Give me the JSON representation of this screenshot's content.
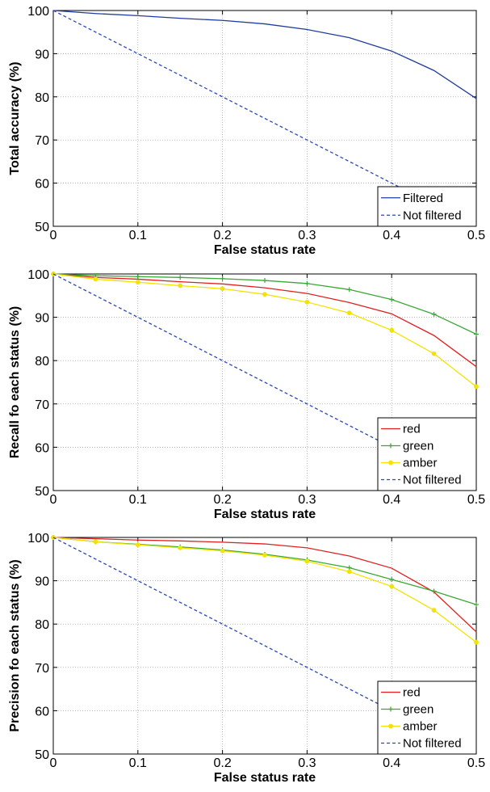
{
  "colors": {
    "Filtered": "#1f3d9c",
    "Not filtered": "#2b4ab8",
    "red": "#e02020",
    "green": "#3aa835",
    "amber": "#f2e300",
    "grid": "#9a9a9a"
  },
  "chart_data": [
    {
      "type": "line",
      "xlabel": "False status rate",
      "ylabel": "Total accuracy (%)",
      "xlim": [
        0,
        0.5
      ],
      "ylim": [
        50,
        100
      ],
      "xticks": [
        "0",
        "0.1",
        "0.2",
        "0.3",
        "0.4",
        "0.5"
      ],
      "yticks": [
        "50",
        "60",
        "70",
        "80",
        "90",
        "100"
      ],
      "grid": true,
      "legend_position": "bottom-right",
      "x": [
        0,
        0.05,
        0.1,
        0.15,
        0.2,
        0.25,
        0.3,
        0.35,
        0.4,
        0.45,
        0.5
      ],
      "series": [
        {
          "name": "Filtered",
          "style": "solid",
          "markers": false,
          "values": [
            100,
            99.3,
            98.8,
            98.2,
            97.7,
            96.9,
            95.6,
            93.7,
            90.6,
            86.1,
            79.6
          ]
        },
        {
          "name": "Not filtered",
          "style": "dashed",
          "markers": false,
          "values": [
            100,
            95,
            90,
            85,
            80,
            75,
            70,
            65,
            60,
            55,
            50
          ]
        }
      ]
    },
    {
      "type": "line",
      "xlabel": "False status rate",
      "ylabel": "Recall fo each status (%)",
      "xlim": [
        0,
        0.5
      ],
      "ylim": [
        50,
        100
      ],
      "xticks": [
        "0",
        "0.1",
        "0.2",
        "0.3",
        "0.4",
        "0.5"
      ],
      "yticks": [
        "50",
        "60",
        "70",
        "80",
        "90",
        "100"
      ],
      "grid": true,
      "legend_position": "bottom-right",
      "x": [
        0,
        0.05,
        0.1,
        0.15,
        0.2,
        0.25,
        0.3,
        0.35,
        0.4,
        0.45,
        0.5
      ],
      "series": [
        {
          "name": "red",
          "style": "solid",
          "markers": false,
          "values": [
            100,
            99.2,
            98.8,
            98.2,
            97.7,
            96.8,
            95.5,
            93.4,
            90.8,
            85.8,
            78.6
          ]
        },
        {
          "name": "green",
          "style": "solid",
          "markers": true,
          "values": [
            100,
            99.6,
            99.4,
            99.2,
            98.9,
            98.5,
            97.8,
            96.4,
            94.1,
            90.7,
            86.1
          ]
        },
        {
          "name": "amber",
          "style": "solid",
          "markers": true,
          "values": [
            100,
            98.8,
            98.1,
            97.3,
            96.6,
            95.3,
            93.5,
            91.0,
            87.0,
            81.6,
            74.0
          ]
        },
        {
          "name": "Not filtered",
          "style": "dashed",
          "markers": false,
          "values": [
            100,
            95,
            90,
            85,
            80,
            75,
            70,
            65,
            60,
            55,
            50
          ]
        }
      ]
    },
    {
      "type": "line",
      "xlabel": "False status rate",
      "ylabel": "Precision fo each status (%)",
      "xlim": [
        0,
        0.5
      ],
      "ylim": [
        50,
        100
      ],
      "xticks": [
        "0",
        "0.1",
        "0.2",
        "0.3",
        "0.4",
        "0.5"
      ],
      "yticks": [
        "50",
        "60",
        "70",
        "80",
        "90",
        "100"
      ],
      "grid": true,
      "legend_position": "bottom-right",
      "x": [
        0,
        0.05,
        0.1,
        0.15,
        0.2,
        0.25,
        0.3,
        0.35,
        0.4,
        0.45,
        0.5
      ],
      "series": [
        {
          "name": "red",
          "style": "solid",
          "markers": false,
          "values": [
            100,
            99.7,
            99.4,
            99.2,
            98.9,
            98.5,
            97.6,
            95.7,
            92.9,
            87.4,
            78.2
          ]
        },
        {
          "name": "green",
          "style": "solid",
          "markers": true,
          "values": [
            100,
            99.0,
            98.4,
            97.8,
            97.1,
            96.1,
            94.8,
            93.0,
            90.3,
            87.6,
            84.5
          ]
        },
        {
          "name": "amber",
          "style": "solid",
          "markers": true,
          "values": [
            100,
            99.0,
            98.3,
            97.6,
            96.9,
            95.9,
            94.5,
            92.1,
            88.7,
            83.2,
            75.8
          ]
        },
        {
          "name": "Not filtered",
          "style": "dashed",
          "markers": false,
          "values": [
            100,
            95,
            90,
            85,
            80,
            75,
            70,
            65,
            60,
            55,
            50
          ]
        }
      ]
    }
  ]
}
